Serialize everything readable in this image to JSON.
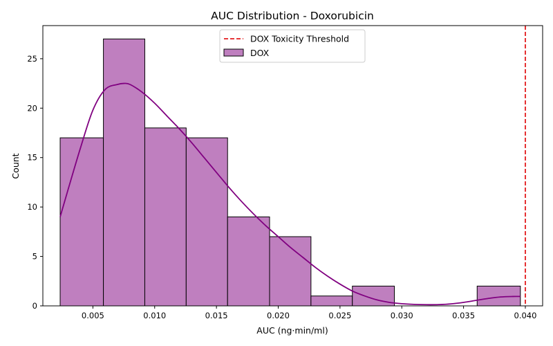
{
  "chart_data": {
    "type": "bar",
    "title": "AUC Distribution - Doxorubicin",
    "xlabel": "AUC (ng·min/ml)",
    "ylabel": "Count",
    "xlim": [
      0.00095,
      0.0414
    ],
    "ylim": [
      0,
      28.35
    ],
    "xticks": [
      0.005,
      0.01,
      0.015,
      0.02,
      0.025,
      0.03,
      0.035,
      0.04
    ],
    "xtick_labels": [
      "0.005",
      "0.010",
      "0.015",
      "0.020",
      "0.025",
      "0.030",
      "0.035",
      "0.040"
    ],
    "yticks": [
      0,
      5,
      10,
      15,
      20,
      25
    ],
    "ytick_labels": [
      "0",
      "5",
      "10",
      "15",
      "20",
      "25"
    ],
    "grid": false,
    "legend_position": "top-center",
    "bins": [
      {
        "x0": 0.00235,
        "x1": 0.00585,
        "count": 17
      },
      {
        "x0": 0.00585,
        "x1": 0.0092,
        "count": 27
      },
      {
        "x0": 0.0092,
        "x1": 0.01255,
        "count": 18
      },
      {
        "x0": 0.01255,
        "x1": 0.0159,
        "count": 17
      },
      {
        "x0": 0.0159,
        "x1": 0.0193,
        "count": 9
      },
      {
        "x0": 0.0193,
        "x1": 0.02265,
        "count": 7
      },
      {
        "x0": 0.02265,
        "x1": 0.026,
        "count": 1
      },
      {
        "x0": 0.026,
        "x1": 0.0294,
        "count": 2
      },
      {
        "x0": 0.0294,
        "x1": 0.03275,
        "count": 0
      },
      {
        "x0": 0.03275,
        "x1": 0.0361,
        "count": 0
      },
      {
        "x0": 0.0361,
        "x1": 0.0396,
        "count": 2
      }
    ],
    "kde": {
      "x": [
        0.00235,
        0.003,
        0.004,
        0.005,
        0.006,
        0.007,
        0.0075,
        0.008,
        0.009,
        0.01,
        0.011,
        0.012,
        0.013,
        0.014,
        0.015,
        0.016,
        0.017,
        0.018,
        0.019,
        0.02,
        0.021,
        0.022,
        0.023,
        0.024,
        0.025,
        0.026,
        0.027,
        0.028,
        0.029,
        0.03,
        0.031,
        0.032,
        0.033,
        0.034,
        0.035,
        0.036,
        0.037,
        0.038,
        0.039,
        0.0396
      ],
      "y": [
        9.0,
        11.8,
        16.0,
        19.8,
        21.9,
        22.4,
        22.5,
        22.4,
        21.6,
        20.5,
        19.2,
        17.9,
        16.5,
        15.0,
        13.5,
        12.0,
        10.6,
        9.3,
        8.1,
        7.0,
        5.9,
        4.9,
        3.9,
        3.0,
        2.2,
        1.5,
        1.0,
        0.6,
        0.35,
        0.22,
        0.15,
        0.12,
        0.13,
        0.2,
        0.35,
        0.55,
        0.75,
        0.9,
        0.95,
        0.95
      ]
    },
    "threshold": {
      "x": 0.04
    },
    "legend": [
      {
        "label": "DOX Toxicity Threshold",
        "style": "dashed-line",
        "color": "#e31a1c"
      },
      {
        "label": "DOX",
        "style": "patch",
        "color": "#bf7fbf"
      }
    ],
    "colors": {
      "bar_fill": "#bf7fbf",
      "bar_edge": "#000000",
      "kde_line": "#800080",
      "threshold_line": "#e31a1c"
    }
  }
}
